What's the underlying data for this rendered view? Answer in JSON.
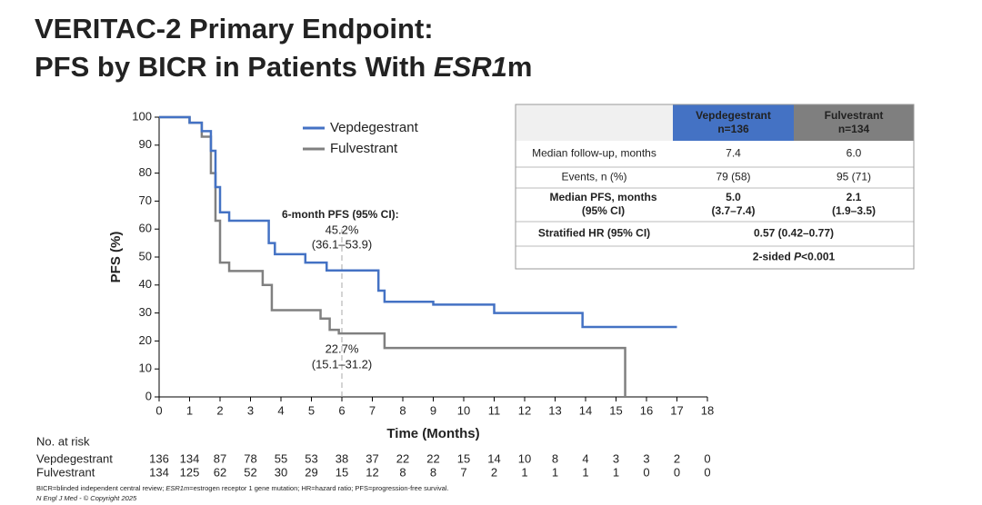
{
  "header": {
    "title_line1": "VERITAC-2 Primary Endpoint:",
    "title_line2": [
      "PFS by BICR in Patients With ",
      "ESR1",
      "m"
    ]
  },
  "chart_data": {
    "type": "line",
    "x_label": "Time (Months)",
    "y_label": "PFS (%)",
    "xlim": [
      0,
      18
    ],
    "ylim": [
      0,
      100
    ],
    "xticks": [
      0,
      1,
      2,
      3,
      4,
      5,
      6,
      7,
      8,
      9,
      10,
      11,
      12,
      13,
      14,
      15,
      16,
      17,
      18
    ],
    "yticks": [
      0,
      10,
      20,
      30,
      40,
      50,
      60,
      70,
      80,
      90,
      100
    ],
    "grid": false,
    "legend": "upper left",
    "landmark_x": 6,
    "series": [
      {
        "name": "Vepdegestrant",
        "color": "#4472c4",
        "x": [
          0,
          1,
          1,
          1.4,
          1.4,
          1.7,
          1.7,
          1.85,
          1.85,
          2,
          2,
          2.3,
          2.3,
          3.6,
          3.6,
          3.8,
          3.8,
          4.8,
          4.8,
          5.5,
          5.5,
          7.2,
          7.2,
          7.4,
          7.4,
          9,
          9,
          11,
          11,
          13.9,
          13.9,
          17
        ],
        "values": [
          100,
          100,
          98,
          98,
          95,
          95,
          88,
          88,
          75,
          75,
          66,
          66,
          63,
          63,
          55,
          55,
          51,
          51,
          48,
          48,
          45.2,
          45.2,
          38,
          38,
          34,
          34,
          33,
          33,
          30,
          30,
          25,
          25
        ]
      },
      {
        "name": "Fulvestrant",
        "color": "#808080",
        "x": [
          0,
          1,
          1,
          1.4,
          1.4,
          1.7,
          1.7,
          1.85,
          1.85,
          2,
          2,
          2.3,
          2.3,
          3.4,
          3.4,
          3.7,
          3.7,
          5.3,
          5.3,
          5.6,
          5.6,
          5.9,
          5.9,
          7.4,
          7.4,
          15.3,
          15.3
        ],
        "values": [
          100,
          100,
          98,
          98,
          93,
          93,
          80,
          80,
          63,
          63,
          48,
          48,
          45,
          45,
          40,
          40,
          31,
          31,
          28,
          28,
          24,
          24,
          22.7,
          22.7,
          17.5,
          17.5,
          0
        ]
      }
    ],
    "annotations": {
      "title": "6-month PFS (95% CI):",
      "vep_value": "45.2%",
      "vep_ci": "(36.1–53.9)",
      "fulv_value": "22.7%",
      "fulv_ci": "(15.1–31.2)"
    }
  },
  "summary_table": {
    "columns": [
      {
        "name": "Vepdegestrant",
        "n": "n=136"
      },
      {
        "name": "Fulvestrant",
        "n": "n=134"
      }
    ],
    "rows": [
      [
        "Median follow-up, months",
        "7.4",
        "6.0"
      ],
      [
        "Events, n (%)",
        "79 (58)",
        "95 (71)"
      ],
      [
        [
          "Median PFS, months",
          "(95% CI)"
        ],
        [
          "5.0",
          "(3.7–7.4)"
        ],
        [
          "2.1",
          "(1.9–3.5)"
        ]
      ]
    ],
    "hr": {
      "label": "Stratified HR (95% CI)",
      "value": "0.57 (0.42–0.77)"
    },
    "p_value": [
      "2-sided ",
      "P",
      "<0.001"
    ]
  },
  "risk_table": {
    "label": "No. at risk",
    "rows": [
      {
        "name": "Vepdegestrant",
        "values": [
          136,
          134,
          87,
          78,
          55,
          53,
          38,
          37,
          22,
          22,
          15,
          14,
          10,
          8,
          4,
          3,
          3,
          2,
          0
        ]
      },
      {
        "name": "Fulvestrant",
        "values": [
          134,
          125,
          62,
          52,
          30,
          29,
          15,
          12,
          8,
          8,
          7,
          2,
          1,
          1,
          1,
          1,
          0,
          0,
          0
        ]
      }
    ]
  },
  "footnote": {
    "definitions": [
      "BICR=blinded independent central review; ",
      "ESR1m",
      "=estrogen receptor 1 gene mutation; HR=hazard ratio; PFS=progression-free survival."
    ],
    "citation": "N Engl J Med - © Copyright 2025"
  }
}
